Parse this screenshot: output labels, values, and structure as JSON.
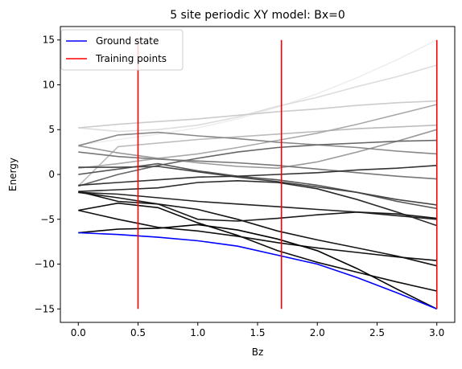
{
  "chart_data": {
    "type": "line",
    "title": "5 site periodic XY model: Bx=0",
    "xlabel": "Bz",
    "ylabel": "Energy",
    "xlim": [
      -0.15,
      3.15
    ],
    "ylim": [
      -16.5,
      16.5
    ],
    "xticks": [
      0.0,
      0.5,
      1.0,
      1.5,
      2.0,
      2.5,
      3.0
    ],
    "xtick_labels": [
      "0.0",
      "0.5",
      "1.0",
      "1.5",
      "2.0",
      "2.5",
      "3.0"
    ],
    "yticks": [
      -15,
      -10,
      -5,
      0,
      5,
      10,
      15
    ],
    "ytick_labels": [
      "−15",
      "−10",
      "−5",
      "0",
      "5",
      "10",
      "15"
    ],
    "grid": false,
    "legend": {
      "placement": "top-left",
      "entries": [
        {
          "label": "Ground state",
          "color": "#0000ff"
        },
        {
          "label": "Training points",
          "color": "#ff0000"
        }
      ]
    },
    "x": [
      0.0,
      0.333,
      0.667,
      1.0,
      1.333,
      1.667,
      2.0,
      2.333,
      2.667,
      3.0
    ],
    "ground_state": {
      "name": "Ground state",
      "color": "#0000ff",
      "values": [
        -6.5,
        -6.7,
        -7.0,
        -7.4,
        -8.0,
        -9.0,
        -10.0,
        -11.5,
        -13.2,
        -15.0
      ]
    },
    "training_points": {
      "name": "Training points",
      "color": "#ff0000",
      "x": [
        0.5,
        1.7,
        3.0
      ],
      "ymin": -15,
      "ymax": 15
    },
    "excited_states": [
      {
        "color": "#eeeeee",
        "values": [
          3.3,
          3.9,
          4.5,
          5.2,
          6.2,
          7.5,
          9.0,
          10.8,
          12.8,
          15.0
        ]
      },
      {
        "color": "#dddddd",
        "values": [
          5.2,
          4.8,
          5.0,
          5.5,
          6.4,
          7.6,
          8.6,
          9.8,
          10.9,
          12.2
        ]
      },
      {
        "color": "#cccccc",
        "values": [
          5.2,
          5.6,
          5.9,
          6.2,
          6.6,
          7.0,
          7.3,
          7.7,
          8.0,
          8.2
        ]
      },
      {
        "color": "#bbbbbb",
        "values": [
          -1.3,
          3.1,
          3.5,
          3.9,
          4.2,
          4.5,
          4.8,
          5.1,
          5.3,
          5.5
        ]
      },
      {
        "color": "#aaaaaa",
        "values": [
          0.7,
          1.2,
          1.8,
          2.3,
          3.0,
          3.8,
          4.6,
          5.6,
          6.7,
          7.8
        ]
      },
      {
        "color": "#999999",
        "values": [
          3.2,
          2.4,
          1.8,
          1.3,
          0.9,
          0.7,
          1.4,
          2.5,
          3.7,
          5.0
        ]
      },
      {
        "color": "#888888",
        "values": [
          3.2,
          4.4,
          4.7,
          4.3,
          4.0,
          3.6,
          3.3,
          3.0,
          2.6,
          2.3
        ]
      },
      {
        "color": "#777777",
        "values": [
          2.5,
          2.0,
          1.7,
          1.5,
          1.3,
          1.0,
          0.6,
          0.2,
          -0.2,
          -0.5
        ]
      },
      {
        "color": "#666666",
        "values": [
          -1.3,
          0.0,
          1.0,
          1.8,
          2.5,
          3.0,
          3.3,
          3.5,
          3.7,
          3.8
        ]
      },
      {
        "color": "#555555",
        "values": [
          0.0,
          0.6,
          1.2,
          0.4,
          -0.2,
          -0.6,
          -1.2,
          -2.0,
          -3.0,
          -3.8
        ]
      },
      {
        "color": "#444444",
        "values": [
          0.8,
          0.8,
          0.9,
          0.3,
          -0.3,
          -0.8,
          -1.4,
          -2.0,
          -2.8,
          -3.4
        ]
      },
      {
        "color": "#333333",
        "values": [
          -1.2,
          -0.9,
          -0.6,
          -0.3,
          -0.2,
          0.0,
          0.2,
          0.5,
          0.7,
          1.0
        ]
      },
      {
        "color": "#2a2a2a",
        "values": [
          -1.9,
          -1.7,
          -1.5,
          -0.9,
          -0.7,
          -0.9,
          -1.6,
          -2.8,
          -4.2,
          -5.7
        ]
      },
      {
        "color": "#222222",
        "values": [
          -2.0,
          -2.2,
          -2.6,
          -3.0,
          -3.3,
          -3.6,
          -3.9,
          -4.2,
          -4.6,
          -5.0
        ]
      },
      {
        "color": "#1a1a1a",
        "values": [
          -2.0,
          -2.6,
          -3.3,
          -5.0,
          -5.2,
          -4.9,
          -4.5,
          -4.2,
          -4.4,
          -4.9
        ]
      },
      {
        "color": "#151515",
        "values": [
          -1.9,
          -3.0,
          -3.3,
          -3.9,
          -5.0,
          -6.3,
          -7.3,
          -8.2,
          -9.1,
          -10.2
        ]
      },
      {
        "color": "#111111",
        "values": [
          -4.0,
          -5.0,
          -5.9,
          -6.3,
          -6.9,
          -7.6,
          -8.2,
          -8.7,
          -9.2,
          -9.6
        ]
      },
      {
        "color": "#0c0c0c",
        "values": [
          -4.0,
          -3.2,
          -3.7,
          -5.4,
          -6.8,
          -8.5,
          -9.8,
          -10.9,
          -12.0,
          -13.0
        ]
      },
      {
        "color": "#000000",
        "values": [
          -6.5,
          -6.1,
          -6.0,
          -5.6,
          -6.2,
          -7.2,
          -8.5,
          -10.5,
          -12.8,
          -15.0
        ]
      }
    ]
  }
}
